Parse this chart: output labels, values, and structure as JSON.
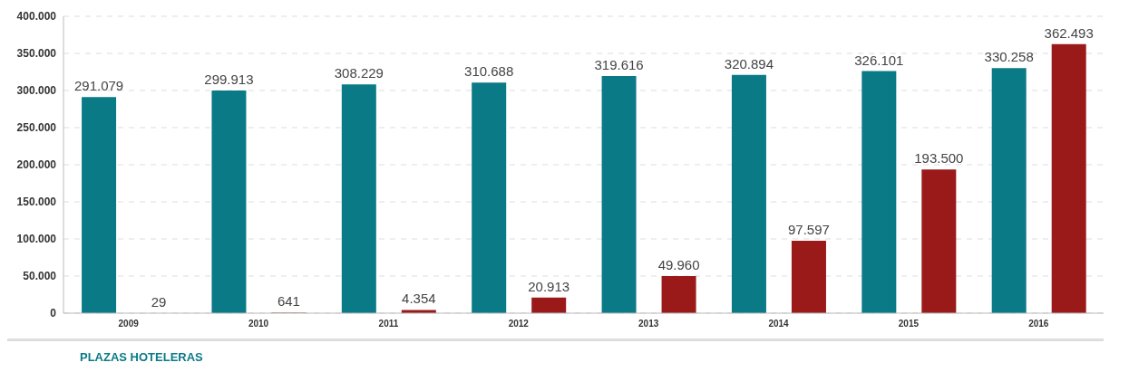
{
  "chart_data": {
    "type": "bar",
    "categories": [
      "2009",
      "2010",
      "2011",
      "2012",
      "2013",
      "2014",
      "2015",
      "2016"
    ],
    "series": [
      {
        "name": "PLAZAS HOTELERAS",
        "color": "#0a7a86",
        "values": [
          291079,
          299913,
          308229,
          310688,
          319616,
          320894,
          326101,
          330258
        ],
        "value_labels": [
          "291.079",
          "299.913",
          "308.229",
          "310.688",
          "319.616",
          "320.894",
          "326.101",
          "330.258"
        ]
      },
      {
        "color": "#9a1a1a",
        "values": [
          29,
          641,
          4354,
          20913,
          49960,
          97597,
          193500,
          362493
        ],
        "value_labels": [
          "29",
          "641",
          "4.354",
          "20.913",
          "49.960",
          "97.597",
          "193.500",
          "362.493"
        ]
      }
    ],
    "ylim": [
      0,
      400000
    ],
    "yticks": [
      {
        "value": 0,
        "label": "0"
      },
      {
        "value": 50000,
        "label": "50.000"
      },
      {
        "value": 100000,
        "label": "100.000"
      },
      {
        "value": 150000,
        "label": "150.000"
      },
      {
        "value": 200000,
        "label": "200.000"
      },
      {
        "value": 250000,
        "label": "250.000"
      },
      {
        "value": 300000,
        "label": "300.000"
      },
      {
        "value": 350000,
        "label": "350.000"
      },
      {
        "value": 400000,
        "label": "400.000"
      }
    ],
    "grid": "y",
    "legend": "bottom left"
  }
}
